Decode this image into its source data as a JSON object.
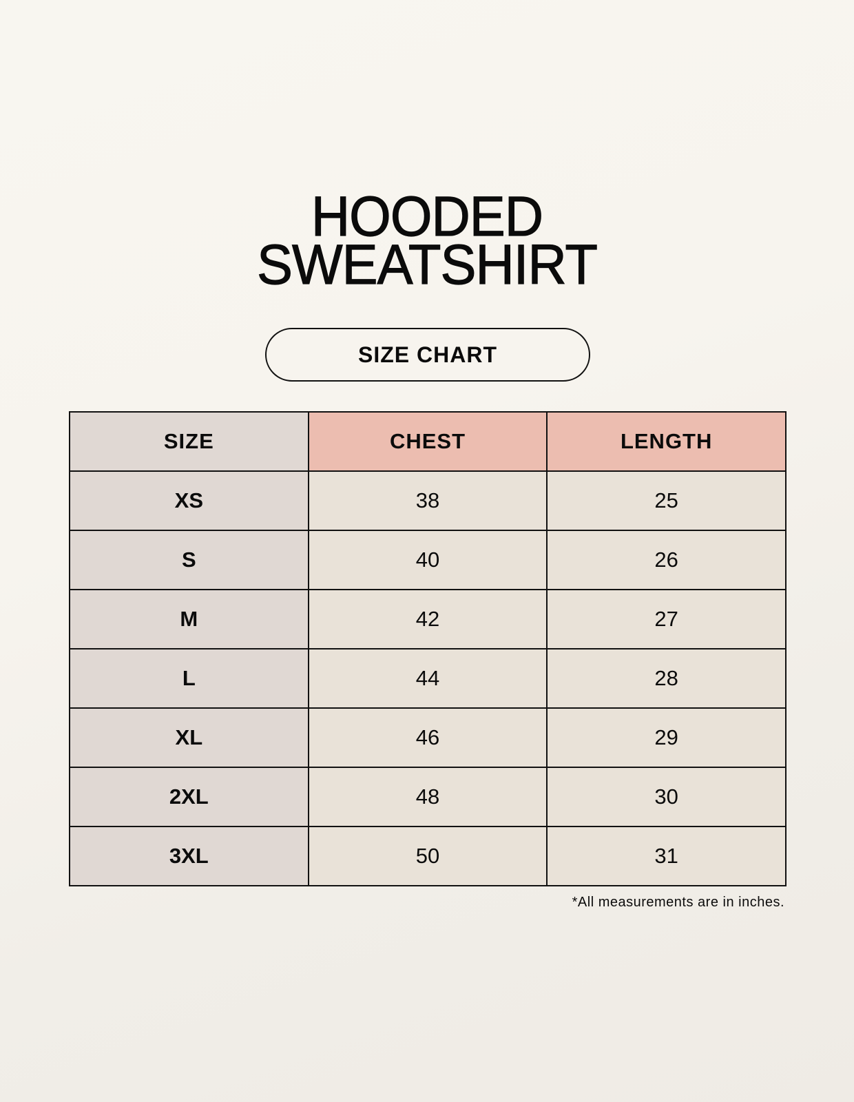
{
  "title": {
    "line1": "HOODED",
    "line2": "SWEATSHIRT"
  },
  "subtitle_pill": "SIZE CHART",
  "colors": {
    "background": "#f8f5ee",
    "size_column": "#e0d8d3",
    "header_accent": "#ecbdb0",
    "cells": "#e9e2d8",
    "border": "#111111"
  },
  "table": {
    "headers": [
      "SIZE",
      "CHEST",
      "LENGTH"
    ],
    "rows": [
      [
        "XS",
        "38",
        "25"
      ],
      [
        "S",
        "40",
        "26"
      ],
      [
        "M",
        "42",
        "27"
      ],
      [
        "L",
        "44",
        "28"
      ],
      [
        "XL",
        "46",
        "29"
      ],
      [
        "2XL",
        "48",
        "30"
      ],
      [
        "3XL",
        "50",
        "31"
      ]
    ]
  },
  "footnote": "*All measurements are in inches."
}
